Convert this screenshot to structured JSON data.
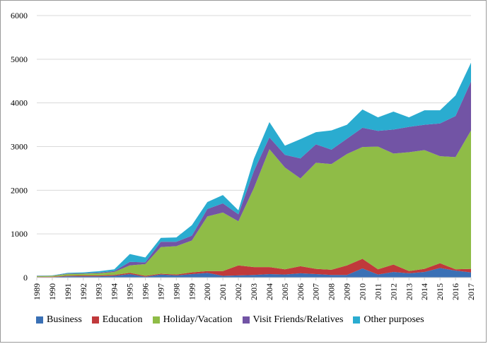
{
  "chart_data": {
    "type": "area",
    "stacked": true,
    "x": [
      "1989",
      "1990",
      "1991",
      "1992",
      "1993",
      "1994",
      "1995",
      "1996",
      "1997",
      "1998",
      "1999",
      "2000",
      "2001",
      "2002",
      "2003",
      "2004",
      "2005",
      "2006",
      "2007",
      "2008",
      "2009",
      "2010",
      "2011",
      "2012",
      "2013",
      "2014",
      "2015",
      "2016",
      "2017"
    ],
    "ylim": [
      0,
      6000
    ],
    "yticks": [
      0,
      1000,
      2000,
      3000,
      4000,
      5000,
      6000
    ],
    "grid": true,
    "legend_position": "bottom",
    "series": [
      {
        "name": "Business",
        "color": "#3a70b5",
        "values": [
          10,
          10,
          30,
          30,
          30,
          40,
          80,
          20,
          70,
          50,
          80,
          110,
          40,
          50,
          60,
          80,
          70,
          100,
          80,
          60,
          60,
          210,
          70,
          130,
          100,
          130,
          220,
          160,
          120
        ]
      },
      {
        "name": "Education",
        "color": "#c0393b",
        "values": [
          5,
          10,
          15,
          20,
          20,
          20,
          30,
          20,
          20,
          20,
          40,
          40,
          110,
          230,
          180,
          160,
          120,
          160,
          120,
          120,
          220,
          220,
          120,
          170,
          50,
          70,
          110,
          30,
          80
        ]
      },
      {
        "name": "Holiday/Vacation",
        "color": "#8fbc47",
        "values": [
          20,
          20,
          40,
          40,
          50,
          70,
          170,
          270,
          610,
          650,
          730,
          1250,
          1340,
          1010,
          1810,
          2700,
          2330,
          2010,
          2430,
          2420,
          2550,
          2560,
          2810,
          2540,
          2720,
          2720,
          2450,
          2570,
          3170
        ]
      },
      {
        "name": "Visit Friends/Relatives",
        "color": "#7254a5",
        "values": [
          5,
          5,
          10,
          10,
          15,
          20,
          80,
          40,
          120,
          100,
          110,
          170,
          210,
          160,
          390,
          270,
          290,
          460,
          420,
          330,
          350,
          440,
          360,
          550,
          580,
          580,
          750,
          940,
          1120
        ]
      },
      {
        "name": "Other purposes",
        "color": "#2aacd0",
        "values": [
          5,
          5,
          15,
          20,
          30,
          40,
          180,
          110,
          90,
          100,
          240,
          160,
          190,
          90,
          280,
          350,
          210,
          440,
          280,
          440,
          320,
          420,
          310,
          410,
          220,
          330,
          300,
          470,
          430
        ]
      }
    ]
  }
}
